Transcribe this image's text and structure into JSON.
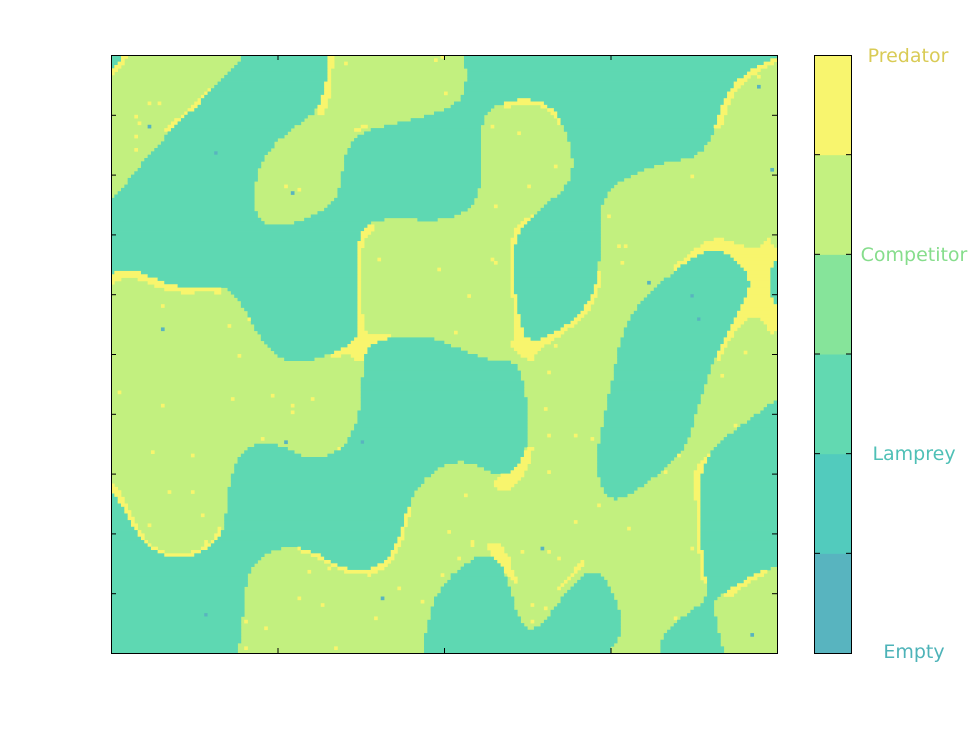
{
  "chart_data": {
    "type": "heatmap",
    "title": "",
    "xlabel": "",
    "ylabel": "",
    "grid": "off",
    "tick_labels_shown": false,
    "grid_size": [
      200,
      180
    ],
    "states": [
      {
        "name": "Empty",
        "value": 0,
        "color": "#58b4bf"
      },
      {
        "name": "Lamprey",
        "value": 1,
        "color": "#5ed8b2"
      },
      {
        "name": "Competitor",
        "value": 2,
        "color": "#c2f07f"
      },
      {
        "name": "Predator",
        "value": 3,
        "color": "#f8f56d"
      }
    ],
    "colorbar": {
      "position": "right",
      "segments": [
        "#58b4bf",
        "#52cbbd",
        "#62d9b1",
        "#86e49a",
        "#c3f180",
        "#f8f56e"
      ],
      "labels": [
        {
          "text": "Predator",
          "color": "#d9cb55"
        },
        {
          "text": "Competitor",
          "color": "#86dd8c"
        },
        {
          "text": "Lamprey",
          "color": "#4fc0b6"
        },
        {
          "text": "Empty",
          "color": "#4db3b8"
        }
      ]
    },
    "approx_fraction": {
      "Empty": 0.002,
      "Lamprey": 0.44,
      "Competitor": 0.52,
      "Predator": 0.04
    }
  }
}
